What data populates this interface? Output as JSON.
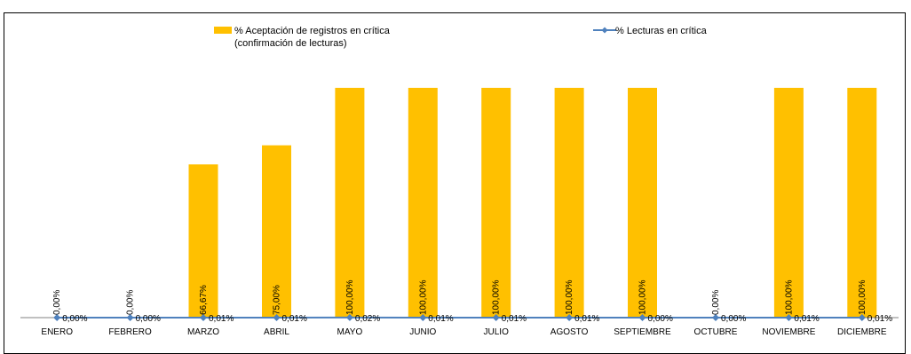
{
  "chart_data": {
    "type": "bar",
    "categories": [
      "ENERO",
      "FEBRERO",
      "MARZO",
      "ABRIL",
      "MAYO",
      "JUNIO",
      "JULIO",
      "AGOSTO",
      "SEPTIEMBRE",
      "OCTUBRE",
      "NOVIEMBRE",
      "DICIEMBRE"
    ],
    "series": [
      {
        "name": "% Aceptación de registros en crítica (confirmación de lecturas)",
        "legend_lines": [
          "% Aceptación de registros en crítica",
          "(confirmación de lecturas)"
        ],
        "kind": "bar",
        "color": "#FFC000",
        "values": [
          0,
          0,
          66.67,
          75.0,
          100.0,
          100.0,
          100.0,
          100.0,
          100.0,
          0,
          100.0,
          100.0
        ],
        "labels": [
          "0,00%",
          "0,00%",
          "66,67%",
          "75,00%",
          "100,00%",
          "100,00%",
          "100,00%",
          "100,00%",
          "100,00%",
          "0,00%",
          "100,00%",
          "100,00%"
        ]
      },
      {
        "name": "% Lecturas en crítica",
        "kind": "line",
        "color": "#4F81BD",
        "values": [
          0.0,
          0.0,
          0.01,
          0.01,
          0.02,
          0.01,
          0.01,
          0.01,
          0.0,
          0.0,
          0.01,
          0.01
        ],
        "labels": [
          "0,00%",
          "0,00%",
          "0,01%",
          "0,01%",
          "0,02%",
          "0,01%",
          "0,01%",
          "0,01%",
          "0,00%",
          "0,00%",
          "0,01%",
          "0,01%"
        ]
      }
    ],
    "ylim": [
      0,
      100
    ],
    "grid": false,
    "legend_position": "top"
  }
}
